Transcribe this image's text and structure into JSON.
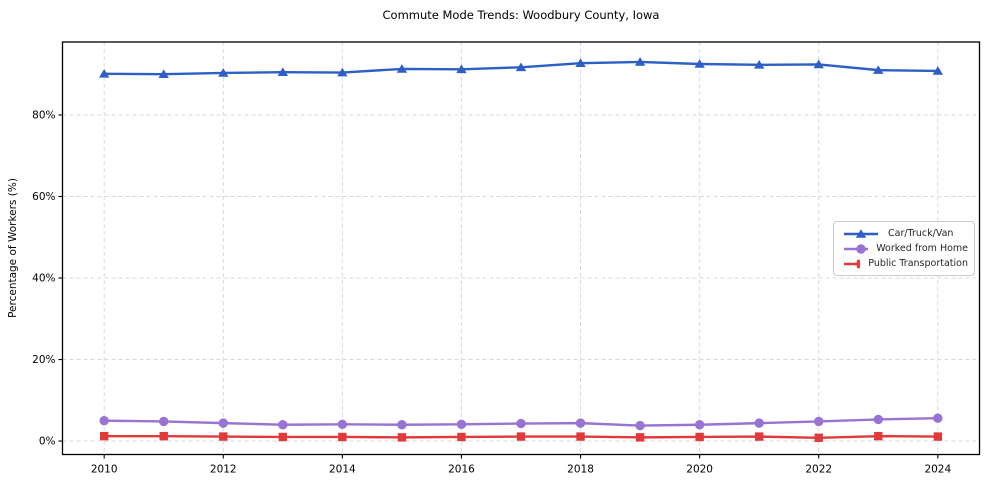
{
  "chart_data": {
    "type": "line",
    "title": "Commute Mode Trends: Woodbury County, Iowa",
    "xlabel": "",
    "ylabel": "Percentage of Workers (%)",
    "x": [
      2010,
      2011,
      2012,
      2013,
      2014,
      2015,
      2016,
      2017,
      2018,
      2019,
      2020,
      2021,
      2022,
      2023,
      2024
    ],
    "series": [
      {
        "name": "Car/Truck/Van",
        "color": "#2d5fc7",
        "marker": "triangle",
        "values": [
          90.1,
          90.0,
          90.3,
          90.5,
          90.4,
          91.3,
          91.2,
          91.7,
          92.7,
          93.0,
          92.5,
          92.3,
          92.4,
          91.0,
          90.8
        ]
      },
      {
        "name": "Worked from Home",
        "color": "#9873d4",
        "marker": "circle",
        "values": [
          5.0,
          4.8,
          4.4,
          4.0,
          4.1,
          4.0,
          4.1,
          4.3,
          4.4,
          3.8,
          4.0,
          4.4,
          4.8,
          5.3,
          5.6
        ]
      },
      {
        "name": "Public Transportation",
        "color": "#e03a3a",
        "marker": "square",
        "values": [
          1.2,
          1.2,
          1.1,
          1.0,
          1.0,
          0.9,
          1.0,
          1.1,
          1.1,
          0.9,
          1.0,
          1.1,
          0.8,
          1.2,
          1.1
        ]
      }
    ],
    "xticks": {
      "values": [
        2010,
        2012,
        2014,
        2016,
        2018,
        2020,
        2022,
        2024
      ],
      "labels": [
        "2010",
        "2012",
        "2014",
        "2016",
        "2018",
        "2020",
        "2022",
        "2024"
      ]
    },
    "yticks": {
      "values": [
        0,
        20,
        40,
        60,
        80
      ],
      "labels": [
        "0%",
        "20%",
        "40%",
        "60%",
        "80%"
      ]
    },
    "xlim": [
      2009.3,
      2024.7
    ],
    "ylim": [
      -3.3,
      97.9
    ],
    "grid": true,
    "legend_position": "center right"
  }
}
